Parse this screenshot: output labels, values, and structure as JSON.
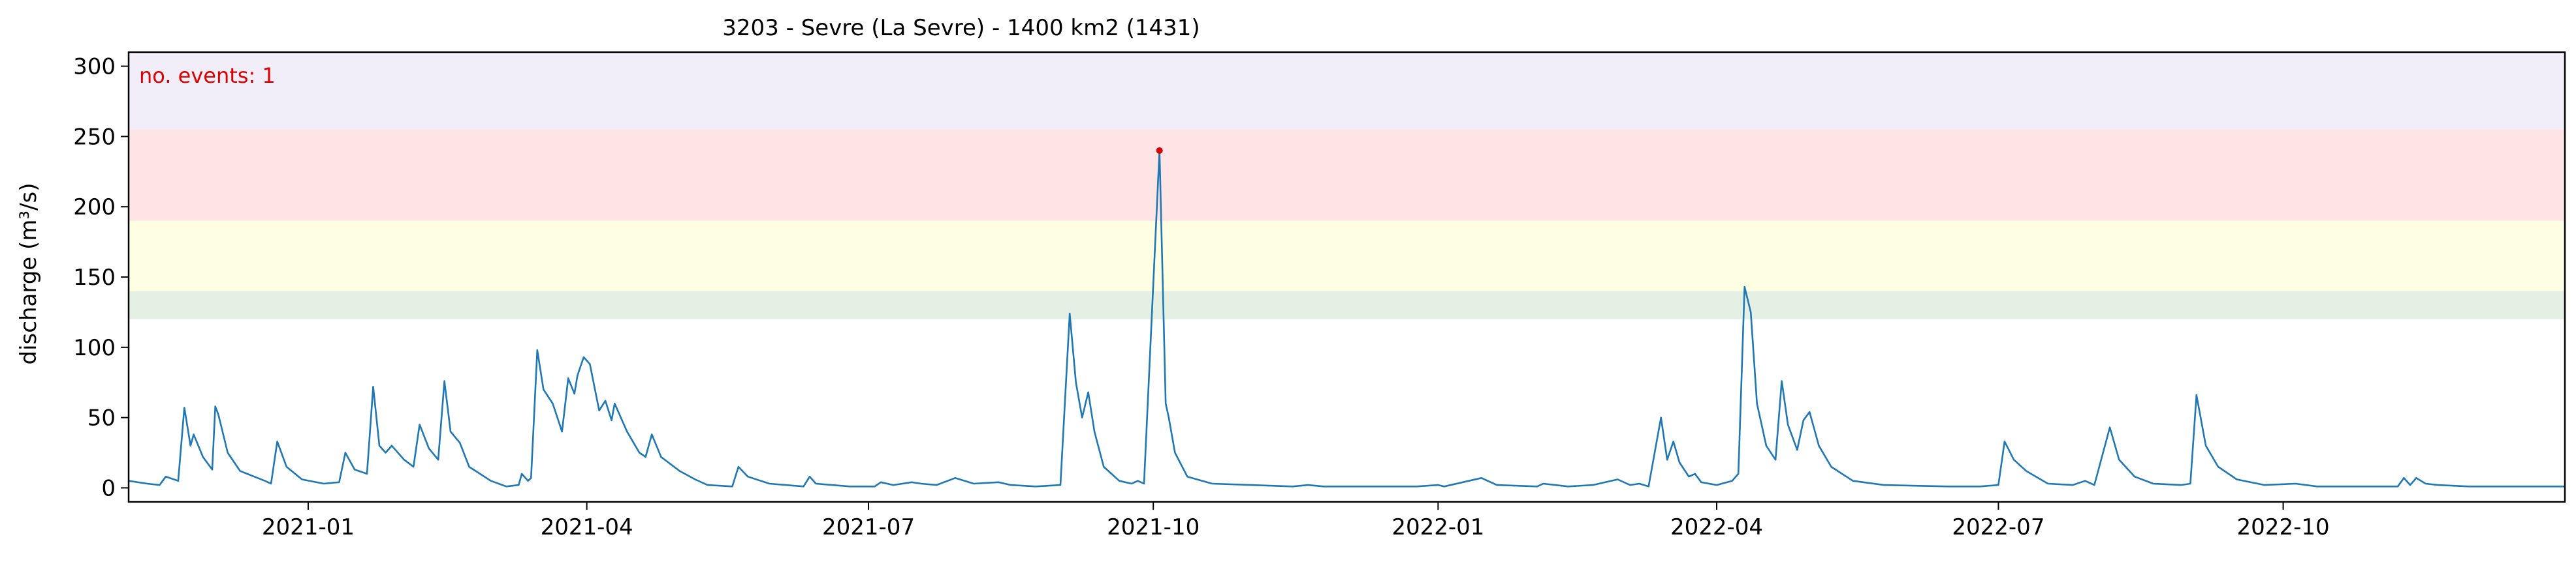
{
  "chart_data": {
    "type": "line",
    "title": "3203 - Sevre (La Sevre) - 1400 km2 (1431)",
    "xlabel": "",
    "ylabel": "discharge (m³/s)",
    "xlim": [
      "2020-11-04",
      "2022-12-31"
    ],
    "ylim": [
      -10,
      310
    ],
    "grid": false,
    "x_ticks": [
      "2021-01",
      "2021-04",
      "2021-07",
      "2021-10",
      "2022-01",
      "2022-04",
      "2022-07",
      "2022-10"
    ],
    "y_ticks": [
      0,
      50,
      100,
      150,
      200,
      250,
      300
    ],
    "threshold_bands": [
      {
        "from": 120,
        "to": 140,
        "color": "#e5f0e5"
      },
      {
        "from": 140,
        "to": 190,
        "color": "#fefee3"
      },
      {
        "from": 190,
        "to": 255,
        "color": "#ffe4e6"
      },
      {
        "from": 255,
        "to": 310,
        "color": "#f2eef9"
      }
    ],
    "annotation": {
      "text": "no. events: 1",
      "color": "#dd0000"
    },
    "events": [
      {
        "x": "2021-10-03",
        "y": 240
      }
    ],
    "series": [
      {
        "color": "#1f77b4",
        "points": [
          [
            "2020-11-04",
            5
          ],
          [
            "2020-11-10",
            3
          ],
          [
            "2020-11-14",
            2
          ],
          [
            "2020-11-16",
            8
          ],
          [
            "2020-11-20",
            5
          ],
          [
            "2020-11-22",
            57
          ],
          [
            "2020-11-24",
            30
          ],
          [
            "2020-11-25",
            38
          ],
          [
            "2020-11-28",
            22
          ],
          [
            "2020-12-01",
            13
          ],
          [
            "2020-12-02",
            58
          ],
          [
            "2020-12-03",
            52
          ],
          [
            "2020-12-06",
            25
          ],
          [
            "2020-12-10",
            12
          ],
          [
            "2020-12-18",
            5
          ],
          [
            "2020-12-20",
            3
          ],
          [
            "2020-12-22",
            33
          ],
          [
            "2020-12-25",
            15
          ],
          [
            "2020-12-30",
            6
          ],
          [
            "2021-01-06",
            3
          ],
          [
            "2021-01-11",
            4
          ],
          [
            "2021-01-13",
            25
          ],
          [
            "2021-01-16",
            13
          ],
          [
            "2021-01-20",
            10
          ],
          [
            "2021-01-22",
            72
          ],
          [
            "2021-01-24",
            30
          ],
          [
            "2021-01-26",
            25
          ],
          [
            "2021-01-28",
            30
          ],
          [
            "2021-02-01",
            20
          ],
          [
            "2021-02-04",
            15
          ],
          [
            "2021-02-06",
            45
          ],
          [
            "2021-02-09",
            28
          ],
          [
            "2021-02-12",
            20
          ],
          [
            "2021-02-14",
            76
          ],
          [
            "2021-02-16",
            40
          ],
          [
            "2021-02-19",
            32
          ],
          [
            "2021-02-22",
            15
          ],
          [
            "2021-03-01",
            5
          ],
          [
            "2021-03-06",
            1
          ],
          [
            "2021-03-10",
            2
          ],
          [
            "2021-03-11",
            10
          ],
          [
            "2021-03-13",
            5
          ],
          [
            "2021-03-14",
            7
          ],
          [
            "2021-03-16",
            98
          ],
          [
            "2021-03-18",
            70
          ],
          [
            "2021-03-21",
            60
          ],
          [
            "2021-03-24",
            40
          ],
          [
            "2021-03-26",
            78
          ],
          [
            "2021-03-28",
            67
          ],
          [
            "2021-03-29",
            80
          ],
          [
            "2021-03-31",
            93
          ],
          [
            "2021-04-02",
            88
          ],
          [
            "2021-04-05",
            55
          ],
          [
            "2021-04-07",
            62
          ],
          [
            "2021-04-09",
            48
          ],
          [
            "2021-04-10",
            60
          ],
          [
            "2021-04-14",
            40
          ],
          [
            "2021-04-18",
            25
          ],
          [
            "2021-04-20",
            22
          ],
          [
            "2021-04-22",
            38
          ],
          [
            "2021-04-25",
            22
          ],
          [
            "2021-05-01",
            12
          ],
          [
            "2021-05-06",
            6
          ],
          [
            "2021-05-10",
            2
          ],
          [
            "2021-05-18",
            1
          ],
          [
            "2021-05-20",
            15
          ],
          [
            "2021-05-23",
            8
          ],
          [
            "2021-05-30",
            3
          ],
          [
            "2021-06-10",
            1
          ],
          [
            "2021-06-12",
            8
          ],
          [
            "2021-06-14",
            3
          ],
          [
            "2021-06-25",
            1
          ],
          [
            "2021-07-03",
            1
          ],
          [
            "2021-07-05",
            4
          ],
          [
            "2021-07-09",
            2
          ],
          [
            "2021-07-15",
            4
          ],
          [
            "2021-07-18",
            3
          ],
          [
            "2021-07-23",
            2
          ],
          [
            "2021-07-29",
            7
          ],
          [
            "2021-08-04",
            3
          ],
          [
            "2021-08-12",
            4
          ],
          [
            "2021-08-16",
            2
          ],
          [
            "2021-08-24",
            1
          ],
          [
            "2021-09-01",
            2
          ],
          [
            "2021-09-04",
            124
          ],
          [
            "2021-09-06",
            75
          ],
          [
            "2021-09-08",
            50
          ],
          [
            "2021-09-10",
            68
          ],
          [
            "2021-09-12",
            40
          ],
          [
            "2021-09-15",
            15
          ],
          [
            "2021-09-20",
            5
          ],
          [
            "2021-09-24",
            3
          ],
          [
            "2021-09-26",
            5
          ],
          [
            "2021-09-28",
            3
          ],
          [
            "2021-10-03",
            240
          ],
          [
            "2021-10-05",
            60
          ],
          [
            "2021-10-06",
            50
          ],
          [
            "2021-10-08",
            25
          ],
          [
            "2021-10-12",
            8
          ],
          [
            "2021-10-20",
            3
          ],
          [
            "2021-11-15",
            1
          ],
          [
            "2021-11-20",
            2
          ],
          [
            "2021-11-25",
            1
          ],
          [
            "2021-12-05",
            1
          ],
          [
            "2021-12-15",
            1
          ],
          [
            "2021-12-25",
            1
          ],
          [
            "2022-01-01",
            2
          ],
          [
            "2022-01-03",
            1
          ],
          [
            "2022-01-15",
            7
          ],
          [
            "2022-01-20",
            2
          ],
          [
            "2022-02-02",
            1
          ],
          [
            "2022-02-04",
            3
          ],
          [
            "2022-02-12",
            1
          ],
          [
            "2022-02-20",
            2
          ],
          [
            "2022-02-28",
            6
          ],
          [
            "2022-03-04",
            2
          ],
          [
            "2022-03-07",
            3
          ],
          [
            "2022-03-10",
            1
          ],
          [
            "2022-03-14",
            50
          ],
          [
            "2022-03-16",
            20
          ],
          [
            "2022-03-18",
            33
          ],
          [
            "2022-03-20",
            18
          ],
          [
            "2022-03-23",
            8
          ],
          [
            "2022-03-25",
            10
          ],
          [
            "2022-03-27",
            4
          ],
          [
            "2022-04-01",
            2
          ],
          [
            "2022-04-06",
            5
          ],
          [
            "2022-04-08",
            10
          ],
          [
            "2022-04-10",
            143
          ],
          [
            "2022-04-12",
            125
          ],
          [
            "2022-04-14",
            60
          ],
          [
            "2022-04-17",
            30
          ],
          [
            "2022-04-20",
            20
          ],
          [
            "2022-04-22",
            76
          ],
          [
            "2022-04-24",
            45
          ],
          [
            "2022-04-27",
            27
          ],
          [
            "2022-04-29",
            48
          ],
          [
            "2022-05-01",
            54
          ],
          [
            "2022-05-04",
            30
          ],
          [
            "2022-05-08",
            15
          ],
          [
            "2022-05-15",
            5
          ],
          [
            "2022-05-25",
            2
          ],
          [
            "2022-06-15",
            1
          ],
          [
            "2022-06-25",
            1
          ],
          [
            "2022-07-01",
            2
          ],
          [
            "2022-07-03",
            33
          ],
          [
            "2022-07-06",
            20
          ],
          [
            "2022-07-10",
            12
          ],
          [
            "2022-07-17",
            3
          ],
          [
            "2022-07-25",
            2
          ],
          [
            "2022-07-29",
            5
          ],
          [
            "2022-08-01",
            2
          ],
          [
            "2022-08-06",
            43
          ],
          [
            "2022-08-09",
            20
          ],
          [
            "2022-08-14",
            8
          ],
          [
            "2022-08-20",
            3
          ],
          [
            "2022-08-29",
            2
          ],
          [
            "2022-09-01",
            3
          ],
          [
            "2022-09-03",
            66
          ],
          [
            "2022-09-06",
            30
          ],
          [
            "2022-09-10",
            15
          ],
          [
            "2022-09-16",
            6
          ],
          [
            "2022-09-25",
            2
          ],
          [
            "2022-10-05",
            3
          ],
          [
            "2022-10-12",
            1
          ],
          [
            "2022-10-20",
            1
          ],
          [
            "2022-10-30",
            1
          ],
          [
            "2022-11-07",
            1
          ],
          [
            "2022-11-09",
            7
          ],
          [
            "2022-11-11",
            2
          ],
          [
            "2022-11-13",
            7
          ],
          [
            "2022-11-16",
            3
          ],
          [
            "2022-11-20",
            2
          ],
          [
            "2022-11-30",
            1
          ],
          [
            "2022-12-15",
            1
          ],
          [
            "2022-12-31",
            1
          ]
        ]
      }
    ]
  }
}
